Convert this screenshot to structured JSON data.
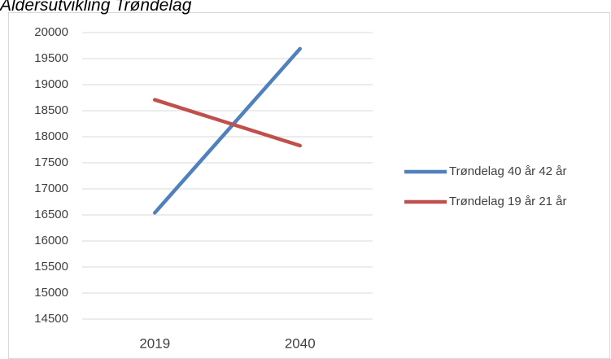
{
  "chart_data": {
    "type": "line",
    "title": "Aldersutvikling Trøndelag",
    "categories": [
      "2019",
      "2040"
    ],
    "series": [
      {
        "name": "Trøndelag 40 år 42 år",
        "color": "#4f81bd",
        "values": [
          16540,
          19690
        ]
      },
      {
        "name": "Trøndelag 19 år 21 år",
        "color": "#c0504d",
        "values": [
          18710,
          17830
        ]
      }
    ],
    "ylim": [
      14500,
      20000
    ],
    "yticks": [
      14500,
      15000,
      15500,
      16000,
      16500,
      17000,
      17500,
      18000,
      18500,
      19000,
      19500,
      20000
    ],
    "grid": true,
    "legend": "right"
  }
}
